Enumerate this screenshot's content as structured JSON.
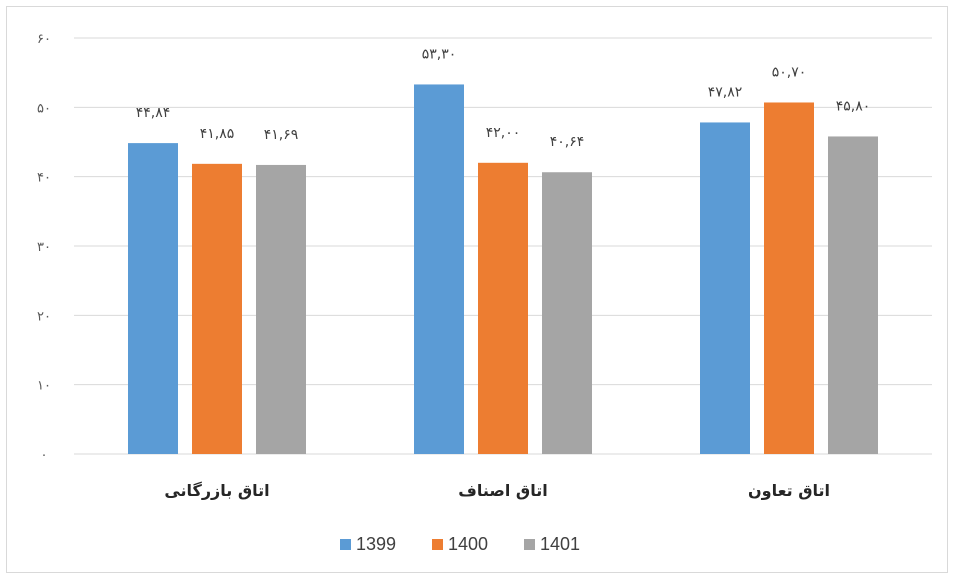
{
  "chart_data": {
    "type": "bar",
    "categories": [
      "اتاق بازرگانی",
      "اتاق اصناف",
      "اتاق تعاون"
    ],
    "series": [
      {
        "name": "1399",
        "color": "#5b9bd5",
        "values": [
          44.84,
          53.3,
          47.82
        ],
        "labels": [
          "۴۴,۸۴",
          "۵۳,۳۰",
          "۴۷,۸۲"
        ]
      },
      {
        "name": "1400",
        "color": "#ed7d31",
        "values": [
          41.85,
          42.0,
          50.7
        ],
        "labels": [
          "۴۱,۸۵",
          "۴۲,۰۰",
          "۵۰,۷۰"
        ]
      },
      {
        "name": "1401",
        "color": "#a5a5a5",
        "values": [
          41.69,
          40.64,
          45.8
        ],
        "labels": [
          "۴۱,۶۹",
          "۴۰,۶۴",
          "۴۵,۸۰"
        ]
      }
    ],
    "yticks": [
      0,
      10,
      20,
      30,
      40,
      50,
      60
    ],
    "ytick_labels": [
      "۰",
      "۱۰",
      "۲۰",
      "۳۰",
      "۴۰",
      "۵۰",
      "۶۰"
    ],
    "ylim": [
      0,
      60
    ],
    "grid": true,
    "legend": "bottom",
    "gridline_color": "#d9d9d9",
    "title": "",
    "xlabel": "",
    "ylabel": ""
  }
}
